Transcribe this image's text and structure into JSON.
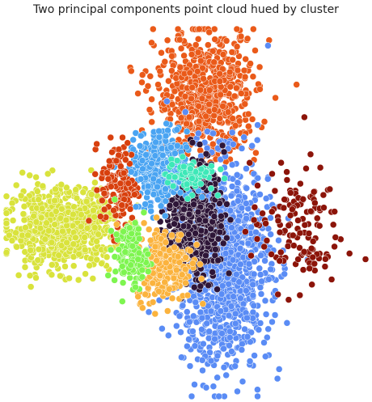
{
  "chart_data": {
    "type": "scatter",
    "title": "Two principal components point cloud hued by cluster",
    "xlabel": "",
    "ylabel": "",
    "axes_visible": false,
    "grid": false,
    "legend": "none",
    "xlim": [
      -4.4,
      4.4
    ],
    "ylim": [
      -4.1,
      4.2
    ],
    "marker": {
      "shape": "circle",
      "edge_color": "#ffffff"
    },
    "series": [
      {
        "color": "#d9e33c",
        "n": 750,
        "center": [
          -3.0,
          -0.3
        ],
        "spread": [
          0.68,
          0.44
        ]
      },
      {
        "color": "#ea5a19",
        "n": 650,
        "center": [
          0.5,
          2.7
        ],
        "spread": [
          0.62,
          0.72
        ]
      },
      {
        "color": "#5a8cf5",
        "n": 1150,
        "center": [
          0.9,
          -1.1
        ],
        "spread": [
          0.58,
          1.15
        ]
      },
      {
        "color": "#2e1638",
        "n": 420,
        "center": [
          0.2,
          -0.1
        ],
        "spread": [
          0.36,
          0.7
        ]
      },
      {
        "color": "#4aa4f2",
        "n": 330,
        "center": [
          -0.7,
          1.0
        ],
        "spread": [
          0.36,
          0.44
        ]
      },
      {
        "color": "#d8400e",
        "n": 140,
        "center": [
          -1.65,
          0.65
        ],
        "spread": [
          0.22,
          0.52
        ]
      },
      {
        "color": "#fbb33e",
        "n": 270,
        "center": [
          -0.55,
          -1.1
        ],
        "spread": [
          0.34,
          0.42
        ]
      },
      {
        "color": "#7ef550",
        "n": 150,
        "center": [
          -1.35,
          -0.9
        ],
        "spread": [
          0.2,
          0.35
        ]
      },
      {
        "color": "#3ee8b8",
        "n": 75,
        "center": [
          0.1,
          0.9
        ],
        "spread": [
          0.3,
          0.18
        ]
      },
      {
        "color": "#8c1409",
        "n": 140,
        "center": [
          2.7,
          -0.3
        ],
        "spread": [
          0.55,
          0.7
        ]
      }
    ]
  }
}
